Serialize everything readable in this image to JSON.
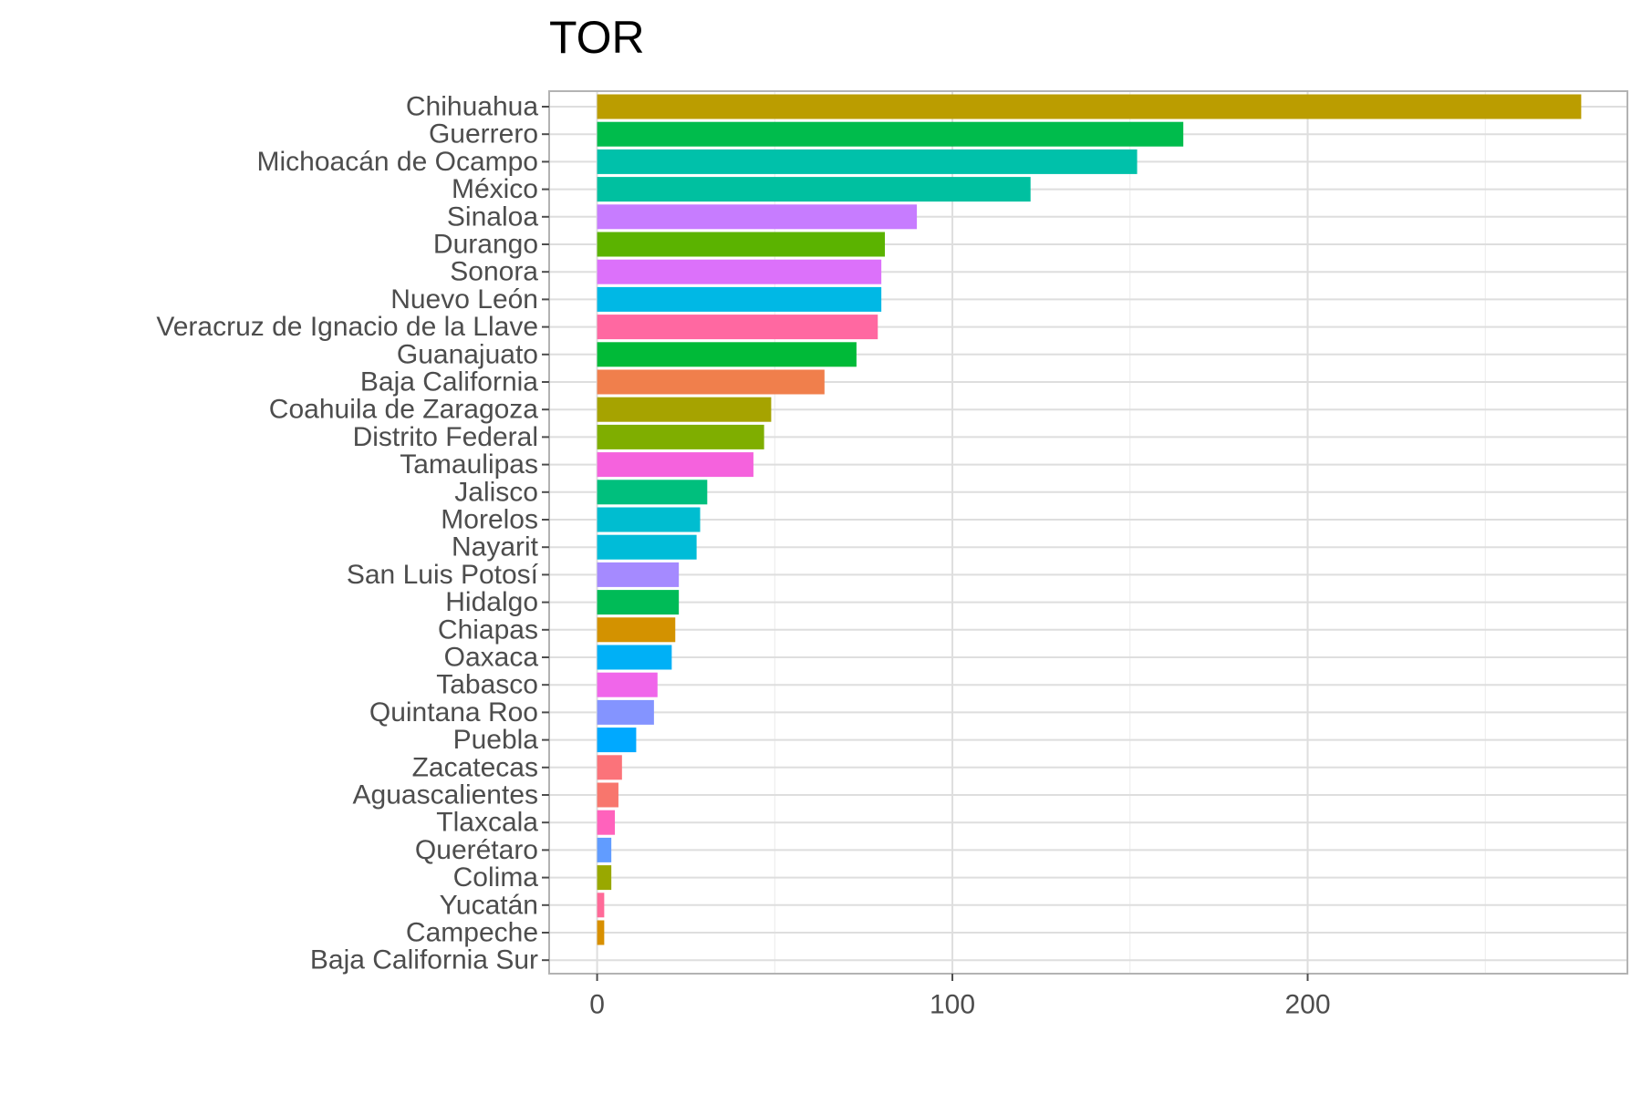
{
  "chart_data": {
    "type": "bar",
    "orientation": "horizontal",
    "title": "TOR",
    "xlabel": "",
    "ylabel": "",
    "xlim": [
      -13.5,
      290
    ],
    "x_ticks": [
      0,
      100,
      200
    ],
    "grid": true,
    "legend": "none",
    "categories": [
      "Chihuahua",
      "Guerrero",
      "Michoacán de Ocampo",
      "México",
      "Sinaloa",
      "Durango",
      "Sonora",
      "Nuevo León",
      "Veracruz de Ignacio de la Llave",
      "Guanajuato",
      "Baja California",
      "Coahuila de Zaragoza",
      "Distrito Federal",
      "Tamaulipas",
      "Jalisco",
      "Morelos",
      "Nayarit",
      "San Luis Potosí",
      "Hidalgo",
      "Chiapas",
      "Oaxaca",
      "Tabasco",
      "Quintana Roo",
      "Puebla",
      "Zacatecas",
      "Aguascalientes",
      "Tlaxcala",
      "Querétaro",
      "Colima",
      "Yucatán",
      "Campeche",
      "Baja California Sur"
    ],
    "values": [
      277,
      165,
      152,
      122,
      90,
      81,
      80,
      80,
      79,
      73,
      64,
      49,
      47,
      44,
      31,
      29,
      28,
      23,
      23,
      22,
      21,
      17,
      16,
      11,
      7,
      6,
      5,
      4,
      4,
      2,
      2,
      0
    ],
    "colors": [
      "#BB9D00",
      "#00BC4C",
      "#00C1AA",
      "#00C0A0",
      "#C77CFF",
      "#5BB300",
      "#DC71FA",
      "#00B8E5",
      "#FF68A1",
      "#00BA38",
      "#F07F4C",
      "#A6A300",
      "#7FAE00",
      "#F562DD",
      "#00BF7D",
      "#00BDD0",
      "#00BCD8",
      "#A58AFF",
      "#00BB57",
      "#D39200",
      "#00B0F6",
      "#F066EA",
      "#8494FF",
      "#00A9FF",
      "#FB737A",
      "#F8766D",
      "#FF62BC",
      "#619CFF",
      "#99A800",
      "#FF6A98",
      "#D89000",
      "#E58700"
    ]
  }
}
